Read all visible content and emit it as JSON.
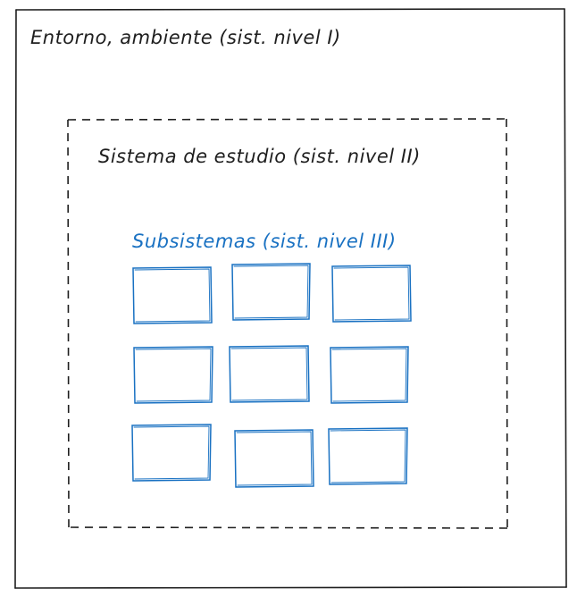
{
  "diagram": {
    "environment": {
      "label": "Entorno, ambiente (sist. nivel I)",
      "stroke_color": "#1e1e1e"
    },
    "study_system": {
      "label": "Sistema de estudio (sist. nivel II)",
      "stroke_color": "#1e1e1e",
      "border_style": "dashed"
    },
    "subsystems": {
      "label": "Subsistemas (sist. nivel III)",
      "color": "#1971c2",
      "rows": 3,
      "columns": 3
    }
  }
}
